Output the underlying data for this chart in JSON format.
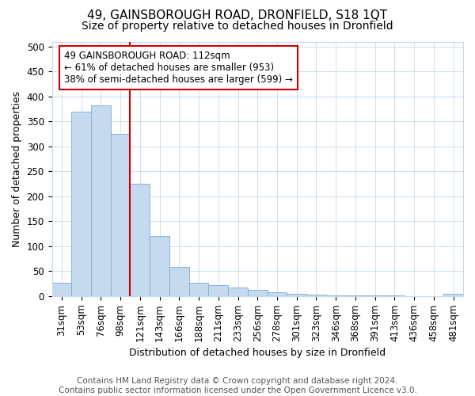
{
  "title": "49, GAINSBOROUGH ROAD, DRONFIELD, S18 1QT",
  "subtitle": "Size of property relative to detached houses in Dronfield",
  "xlabel": "Distribution of detached houses by size in Dronfield",
  "ylabel": "Number of detached properties",
  "categories": [
    "31sqm",
    "53sqm",
    "76sqm",
    "98sqm",
    "121sqm",
    "143sqm",
    "166sqm",
    "188sqm",
    "211sqm",
    "233sqm",
    "256sqm",
    "278sqm",
    "301sqm",
    "323sqm",
    "346sqm",
    "368sqm",
    "391sqm",
    "413sqm",
    "436sqm",
    "458sqm",
    "481sqm"
  ],
  "values": [
    27,
    370,
    383,
    325,
    225,
    120,
    58,
    27,
    22,
    17,
    13,
    7,
    4,
    3,
    2,
    1,
    1,
    1,
    0,
    0,
    5
  ],
  "bar_color": "#c5d9ef",
  "bar_edge_color": "#7aaed4",
  "vline_x": 4.0,
  "vline_color": "#cc0000",
  "annotation_line1": "49 GAINSBOROUGH ROAD: 112sqm",
  "annotation_line2": "← 61% of detached houses are smaller (953)",
  "annotation_line3": "38% of semi-detached houses are larger (599) →",
  "annotation_box_color": "#cc0000",
  "ylim": [
    0,
    510
  ],
  "yticks": [
    0,
    50,
    100,
    150,
    200,
    250,
    300,
    350,
    400,
    450,
    500
  ],
  "footer": "Contains HM Land Registry data © Crown copyright and database right 2024.\nContains public sector information licensed under the Open Government Licence v3.0.",
  "title_fontsize": 11,
  "subtitle_fontsize": 10,
  "xlabel_fontsize": 9,
  "ylabel_fontsize": 9,
  "tick_fontsize": 8.5,
  "footer_fontsize": 7.5,
  "annot_fontsize": 8.5
}
